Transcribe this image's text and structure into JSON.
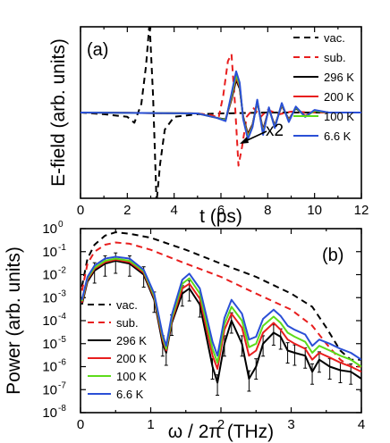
{
  "chart_data": [
    {
      "type": "line",
      "panel_label": "(a)",
      "xlabel": "t (ps)",
      "ylabel": "E-field (arb. units)",
      "xlim": [
        0,
        12
      ],
      "ylim": [
        -1.0,
        1.0
      ],
      "xticks": [
        0,
        2,
        4,
        6,
        8,
        10,
        12
      ],
      "y_tick_labels": "none",
      "legend_position": "top-right",
      "annotation": {
        "text": "x2",
        "points_to": {
          "x": 6.8,
          "y": 0.12
        }
      },
      "series": [
        {
          "name": "vac.",
          "style": "dashed",
          "color": "#000000",
          "x": [
            0.0,
            1.0,
            2.0,
            2.3,
            2.6,
            2.8,
            2.95,
            3.1,
            3.25,
            3.4,
            3.6,
            4.0,
            5.0,
            6.0,
            8.0,
            10.0,
            12.0
          ],
          "y": [
            0.0,
            -0.02,
            -0.05,
            -0.12,
            0.1,
            0.55,
            1.05,
            0.2,
            -1.05,
            -0.6,
            -0.2,
            -0.05,
            -0.02,
            -0.01,
            0.0,
            0.0,
            0.0
          ]
        },
        {
          "name": "sub.",
          "style": "dashed",
          "color": "#e81e1e",
          "x": [
            0.0,
            5.0,
            5.6,
            5.9,
            6.1,
            6.3,
            6.45,
            6.6,
            6.75,
            6.9,
            7.1,
            7.4,
            7.7,
            8.0,
            8.5,
            9.0,
            10.0,
            12.0
          ],
          "y": [
            0.0,
            -0.01,
            -0.03,
            -0.06,
            0.2,
            0.6,
            0.68,
            0.1,
            -0.62,
            -0.4,
            -0.05,
            0.05,
            -0.05,
            0.03,
            -0.02,
            0.01,
            0.0,
            0.0
          ]
        },
        {
          "name": "296 K",
          "style": "solid",
          "color": "#000000",
          "x": [
            0.0,
            5.0,
            5.8,
            6.2,
            6.45,
            6.65,
            6.8,
            6.95,
            7.15,
            7.35,
            7.55,
            7.8,
            8.05,
            8.3,
            8.6,
            8.9,
            9.2,
            9.6,
            10.0,
            10.6,
            12.0
          ],
          "y": [
            0.0,
            -0.01,
            -0.06,
            -0.08,
            0.15,
            0.38,
            0.28,
            -0.05,
            -0.25,
            -0.14,
            0.12,
            -0.2,
            0.04,
            -0.15,
            0.08,
            -0.08,
            0.05,
            -0.04,
            0.02,
            0.0,
            0.0
          ]
        },
        {
          "name": "200 K",
          "style": "solid",
          "color": "#e81e1e",
          "x": [
            0.0,
            5.0,
            5.8,
            6.2,
            6.45,
            6.65,
            6.8,
            6.95,
            7.15,
            7.35,
            7.55,
            7.8,
            8.05,
            8.3,
            8.6,
            8.9,
            9.2,
            9.6,
            10.0,
            10.6,
            12.0
          ],
          "y": [
            0.0,
            -0.01,
            -0.06,
            -0.09,
            0.17,
            0.41,
            0.3,
            -0.06,
            -0.27,
            -0.15,
            0.13,
            -0.22,
            0.05,
            -0.16,
            0.09,
            -0.09,
            0.06,
            -0.04,
            0.02,
            0.0,
            0.0
          ]
        },
        {
          "name": "100 K",
          "style": "solid",
          "color": "#5ddc1a",
          "x": [
            0.0,
            5.0,
            5.8,
            6.2,
            6.45,
            6.65,
            6.8,
            6.95,
            7.15,
            7.35,
            7.55,
            7.8,
            8.05,
            8.3,
            8.6,
            8.9,
            9.2,
            9.6,
            10.0,
            10.6,
            12.0
          ],
          "y": [
            0.0,
            -0.01,
            -0.06,
            -0.09,
            0.19,
            0.44,
            0.32,
            -0.07,
            -0.29,
            -0.16,
            0.14,
            -0.24,
            0.05,
            -0.17,
            0.1,
            -0.1,
            0.06,
            -0.05,
            0.02,
            0.0,
            0.0
          ]
        },
        {
          "name": "6.6 K",
          "style": "solid",
          "color": "#2a4fd6",
          "x": [
            0.0,
            5.0,
            5.8,
            6.2,
            6.45,
            6.65,
            6.8,
            6.95,
            7.15,
            7.35,
            7.55,
            7.8,
            8.05,
            8.3,
            8.6,
            8.9,
            9.2,
            9.6,
            10.0,
            10.6,
            12.0
          ],
          "y": [
            0.0,
            -0.01,
            -0.06,
            -0.1,
            0.22,
            0.48,
            0.35,
            -0.08,
            -0.31,
            -0.17,
            0.15,
            -0.26,
            0.06,
            -0.18,
            0.11,
            -0.11,
            0.07,
            -0.05,
            0.03,
            0.0,
            0.0
          ]
        }
      ]
    },
    {
      "type": "line",
      "panel_label": "(b)",
      "xlabel": "ω / 2π (THz)",
      "ylabel": "Power (arb. units)",
      "xlim": [
        0,
        4
      ],
      "ylim": [
        1e-08,
        1
      ],
      "yscale": "log",
      "xticks": [
        0,
        1,
        2,
        3,
        4
      ],
      "yticks": [
        {
          "exp": 0,
          "label": "10",
          "sup": "0"
        },
        {
          "exp": -1,
          "label": "10",
          "sup": "-1"
        },
        {
          "exp": -2,
          "label": "10",
          "sup": "-2"
        },
        {
          "exp": -3,
          "label": "10",
          "sup": "-3"
        },
        {
          "exp": -4,
          "label": "10",
          "sup": "-4"
        },
        {
          "exp": -5,
          "label": "10",
          "sup": "-5"
        },
        {
          "exp": -6,
          "label": "10",
          "sup": "-6"
        },
        {
          "exp": -7,
          "label": "10",
          "sup": "-7"
        },
        {
          "exp": -8,
          "label": "10",
          "sup": "-8"
        }
      ],
      "legend_position": "bottom-left",
      "error_bars_on": "296 K",
      "series": [
        {
          "name": "vac.",
          "style": "dashed",
          "color": "#000000",
          "x": [
            0.02,
            0.1,
            0.2,
            0.35,
            0.5,
            0.7,
            1.0,
            1.5,
            2.0,
            2.5,
            3.0,
            3.3,
            3.5,
            3.7,
            3.85,
            4.0
          ],
          "y": [
            0.003,
            0.05,
            0.2,
            0.5,
            0.7,
            0.6,
            0.4,
            0.12,
            0.03,
            0.008,
            0.0015,
            0.0004,
            5e-05,
            5e-06,
            2e-06,
            2e-06
          ]
        },
        {
          "name": "sub.",
          "style": "dashed",
          "color": "#e81e1e",
          "x": [
            0.02,
            0.1,
            0.2,
            0.35,
            0.5,
            0.7,
            1.0,
            1.5,
            2.0,
            2.5,
            3.0,
            3.3,
            3.5,
            3.7,
            3.85,
            4.0
          ],
          "y": [
            0.002,
            0.03,
            0.1,
            0.2,
            0.25,
            0.22,
            0.12,
            0.03,
            0.008,
            0.0015,
            0.0003,
            6e-05,
            1e-05,
            2e-06,
            1e-06,
            1e-06
          ]
        },
        {
          "name": "296 K",
          "style": "solid",
          "color": "#000000",
          "x": [
            0.02,
            0.1,
            0.2,
            0.35,
            0.5,
            0.7,
            0.9,
            1.05,
            1.17,
            1.22,
            1.3,
            1.45,
            1.55,
            1.7,
            1.88,
            1.95,
            2.05,
            2.15,
            2.3,
            2.4,
            2.5,
            2.6,
            2.75,
            2.85,
            2.95,
            3.05,
            3.2,
            3.3,
            3.4,
            3.55,
            3.7,
            3.85,
            4.0
          ],
          "y": [
            0.0005,
            0.005,
            0.015,
            0.03,
            0.04,
            0.03,
            0.01,
            0.0008,
            1e-05,
            4e-06,
            8e-05,
            0.0015,
            0.0025,
            0.0005,
            1e-06,
            2e-07,
            1e-05,
            0.0001,
            1e-05,
            3e-07,
            1e-06,
            1e-05,
            3e-05,
            2e-05,
            5e-06,
            4e-06,
            3e-06,
            6e-07,
            2e-06,
            1e-06,
            7e-07,
            6e-07,
            3e-07
          ]
        },
        {
          "name": "200 K",
          "style": "solid",
          "color": "#e81e1e",
          "x": [
            0.02,
            0.1,
            0.2,
            0.35,
            0.5,
            0.7,
            0.9,
            1.05,
            1.17,
            1.22,
            1.3,
            1.45,
            1.55,
            1.7,
            1.88,
            1.95,
            2.05,
            2.15,
            2.3,
            2.4,
            2.5,
            2.6,
            2.75,
            2.85,
            2.95,
            3.05,
            3.2,
            3.3,
            3.4,
            3.55,
            3.7,
            3.85,
            4.0
          ],
          "y": [
            0.0006,
            0.006,
            0.018,
            0.035,
            0.045,
            0.035,
            0.012,
            0.001,
            1.5e-05,
            5e-06,
            0.0001,
            0.0025,
            0.004,
            0.0009,
            3e-06,
            8e-07,
            4e-05,
            0.0002,
            5e-05,
            3e-06,
            5e-06,
            3e-05,
            8e-05,
            4e-05,
            1.5e-05,
            1e-05,
            6e-06,
            2e-06,
            4e-06,
            2.5e-06,
            1.5e-06,
            1e-06,
            6e-07
          ]
        },
        {
          "name": "100 K",
          "style": "solid",
          "color": "#5ddc1a",
          "x": [
            0.02,
            0.1,
            0.2,
            0.35,
            0.5,
            0.7,
            0.9,
            1.05,
            1.17,
            1.22,
            1.3,
            1.45,
            1.55,
            1.7,
            1.88,
            1.95,
            2.05,
            2.15,
            2.3,
            2.4,
            2.5,
            2.6,
            2.75,
            2.85,
            2.95,
            3.05,
            3.2,
            3.3,
            3.4,
            3.55,
            3.7,
            3.85,
            4.0
          ],
          "y": [
            0.0007,
            0.007,
            0.02,
            0.04,
            0.05,
            0.04,
            0.014,
            0.0012,
            2e-05,
            6e-06,
            0.00013,
            0.004,
            0.007,
            0.0015,
            6e-06,
            1.5e-06,
            7e-05,
            0.0004,
            0.0001,
            7e-06,
            1e-05,
            6e-05,
            0.00015,
            8e-05,
            3e-05,
            2e-05,
            1.2e-05,
            4e-06,
            8e-06,
            5e-06,
            3e-06,
            2e-06,
            1e-06
          ]
        },
        {
          "name": "6.6 K",
          "style": "solid",
          "color": "#2a4fd6",
          "x": [
            0.02,
            0.1,
            0.2,
            0.35,
            0.5,
            0.7,
            0.9,
            1.05,
            1.17,
            1.22,
            1.3,
            1.45,
            1.55,
            1.7,
            1.88,
            1.95,
            2.05,
            2.15,
            2.3,
            2.4,
            2.5,
            2.6,
            2.75,
            2.85,
            2.95,
            3.05,
            3.2,
            3.3,
            3.4,
            3.55,
            3.7,
            3.85,
            4.0
          ],
          "y": [
            0.0008,
            0.008,
            0.025,
            0.05,
            0.06,
            0.05,
            0.016,
            0.0015,
            2.5e-05,
            8e-06,
            0.00018,
            0.006,
            0.011,
            0.0025,
            1.2e-05,
            3e-06,
            0.00013,
            0.0008,
            0.0002,
            1.5e-05,
            2e-05,
            0.00012,
            0.0003,
            0.00016,
            6e-05,
            4e-05,
            2.5e-05,
            8e-06,
            1.5e-05,
            1e-05,
            6e-06,
            4e-06,
            2e-06
          ]
        }
      ]
    }
  ]
}
